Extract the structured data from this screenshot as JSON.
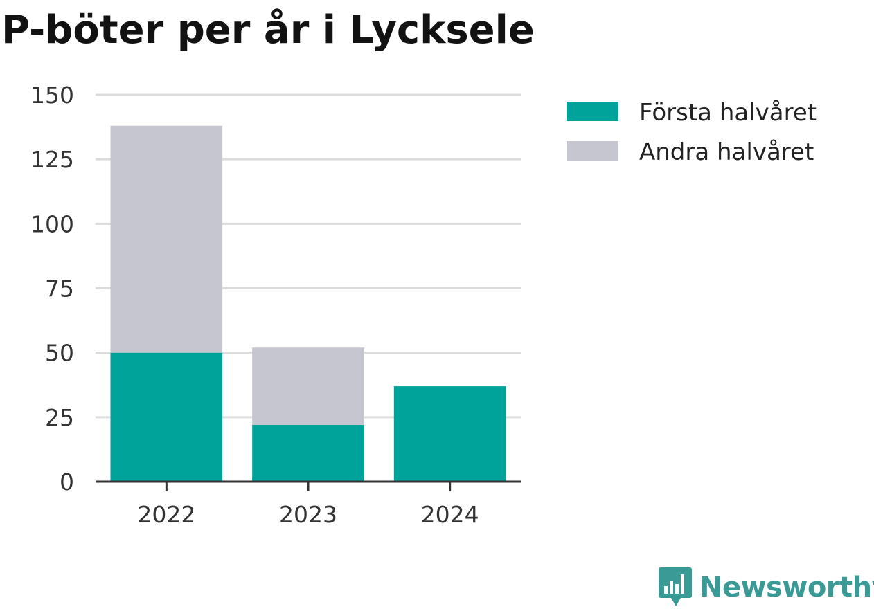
{
  "chart_data": {
    "type": "bar",
    "stacked": true,
    "title": "P-böter per år i Lycksele",
    "xlabel": "",
    "ylabel": "",
    "categories": [
      "2022",
      "2023",
      "2024"
    ],
    "series": [
      {
        "name": "Första halvåret",
        "values": [
          50,
          22,
          37
        ],
        "color": "#00a39a"
      },
      {
        "name": "Andra halvåret",
        "values": [
          88,
          30,
          0
        ],
        "color": "#c6c6d0"
      }
    ],
    "ylim": [
      0,
      150
    ],
    "yticks": [
      0,
      25,
      50,
      75,
      100,
      125,
      150
    ],
    "grid": true,
    "legend_position": "top-right"
  },
  "branding": {
    "name": "Newsworthy",
    "color": "#3a9a96",
    "icon": "bar-chart-speech-bubble-icon"
  }
}
